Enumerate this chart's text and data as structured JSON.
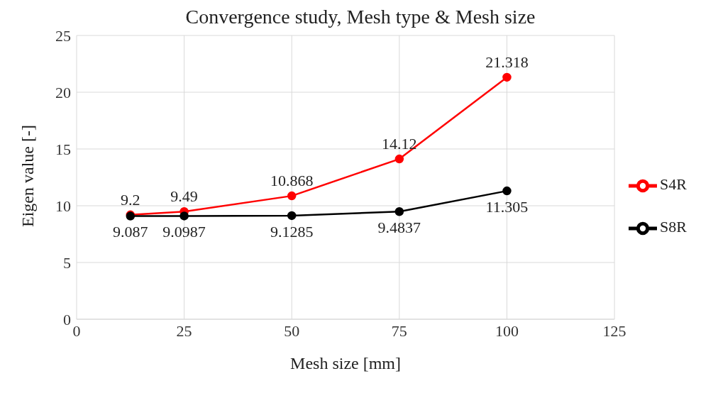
{
  "chart_data": {
    "type": "line",
    "title": "Convergence study, Mesh type & Mesh size",
    "xlabel": "Mesh size [mm]",
    "ylabel": "Eigen value [-]",
    "x": [
      12.5,
      25,
      50,
      75,
      100
    ],
    "series": [
      {
        "name": "S4R",
        "color": "#ff0000",
        "values": [
          9.2,
          9.49,
          10.868,
          14.12,
          21.318
        ]
      },
      {
        "name": "S8R",
        "color": "#000000",
        "values": [
          9.087,
          9.0987,
          9.1285,
          9.4837,
          11.305
        ]
      }
    ],
    "xlim": [
      0,
      125
    ],
    "xticks": [
      0,
      25,
      50,
      75,
      100,
      125
    ],
    "ylim": [
      0,
      25
    ],
    "yticks": [
      0,
      5,
      10,
      15,
      20,
      25
    ],
    "grid": true,
    "legend": "right",
    "marker": "circle",
    "line_style": "solid",
    "data_labels": true
  }
}
